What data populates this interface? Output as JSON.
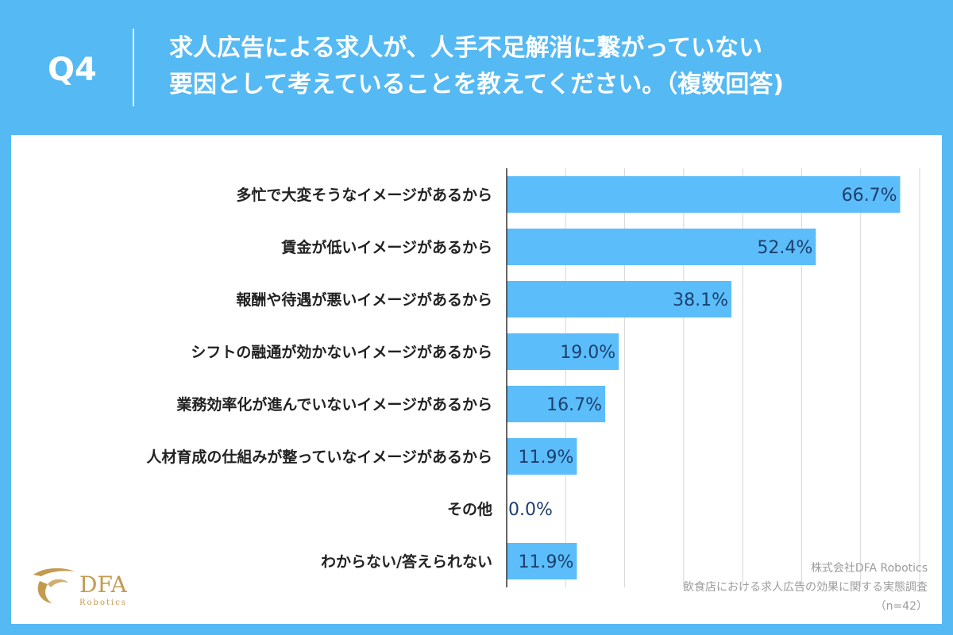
{
  "header": {
    "question_label": "Q4",
    "title_line1": "求人広告による求人が、人手不足解消に繋がっていない",
    "title_line2": "要因として考えていることを教えてください。（複数回答)"
  },
  "chart_data": {
    "type": "bar",
    "orientation": "horizontal",
    "categories": [
      "多忙で大変そうなイメージがあるから",
      "賃金が低いイメージがあるから",
      "報酬や待遇が悪いイメージがあるから",
      "シフトの融通が効かないイメージがあるから",
      "業務効率化が進んでいないイメージがあるから",
      "人材育成の仕組みが整っていなイメージがあるから",
      "その他",
      "わからない/答えられない"
    ],
    "values": [
      66.7,
      52.4,
      38.1,
      19.0,
      16.7,
      11.9,
      0.0,
      11.9
    ],
    "value_labels": [
      "66.7%",
      "52.4%",
      "38.1%",
      "19.0%",
      "16.7%",
      "11.9%",
      "0.0%",
      "11.9%"
    ],
    "xlim": [
      0,
      70
    ],
    "grid": true,
    "bar_color": "#5bbdf9",
    "value_label_color": "#1e3f6e"
  },
  "logo": {
    "brand": "DFA",
    "sub": "Robotics",
    "color": "#c39a4f"
  },
  "footer": {
    "company": "株式会社DFA Robotics",
    "survey": "飲食店における求人広告の効果に関する実態調査",
    "sample": "（n=42）"
  }
}
